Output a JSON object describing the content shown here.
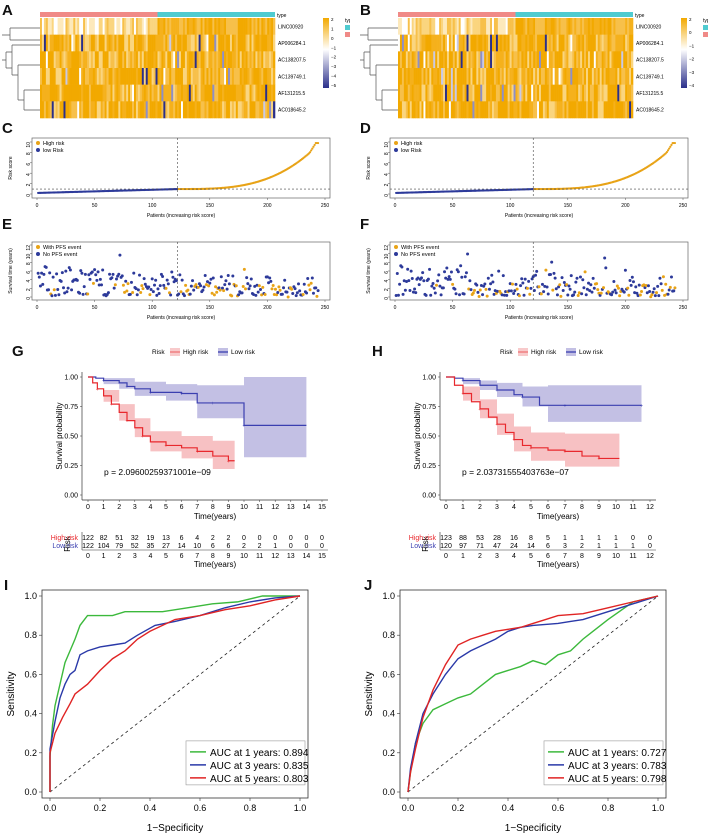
{
  "panels": [
    {
      "key": "A",
      "kind": "heatmap"
    },
    {
      "key": "B",
      "kind": "heatmap"
    },
    {
      "key": "C",
      "kind": "riskscore"
    },
    {
      "key": "D",
      "kind": "riskscore"
    },
    {
      "key": "E",
      "kind": "survival_scatter"
    },
    {
      "key": "F",
      "kind": "survival_scatter"
    },
    {
      "key": "G",
      "kind": "km"
    },
    {
      "key": "H",
      "kind": "km"
    },
    {
      "key": "I",
      "kind": "roc"
    },
    {
      "key": "J",
      "kind": "roc"
    }
  ],
  "colors": {
    "high": "#e8a317",
    "low": "#2d3a9a",
    "hmap_mid": "#ffffff",
    "hmap_hi": "#f2a900",
    "hmap_lo": "#2a2f8a",
    "km_high": "#e8282d",
    "km_low": "#3b3fb0",
    "km_high_fill": "#f4a7a9",
    "km_low_fill": "#a9a5d9",
    "roc1": "#3cb93c",
    "roc3": "#2a39a8",
    "roc5": "#e02424",
    "type_high": "#4fcbd0",
    "type_low": "#f08a87"
  },
  "heatmap": {
    "genes": [
      "LINC00920",
      "AP006284.1",
      "AC138207.5",
      "AC139749.1",
      "AF131215.5",
      "AC018645.2"
    ],
    "legend_title": "type",
    "type_items": [
      "high",
      "low"
    ],
    "scale_title": "type",
    "A": {
      "scale": [
        "2",
        "1",
        "0",
        "−1",
        "−2",
        "−3",
        "−4",
        "−5"
      ],
      "low_fraction": 0.5
    },
    "B": {
      "scale": [
        "2",
        "0",
        "−1",
        "−2",
        "−3",
        "−4"
      ],
      "low_fraction": 0.5
    }
  },
  "risk": {
    "legend": [
      "High risk",
      "low Risk"
    ],
    "ylabel": "Risk score",
    "xlabel": "Patients (increasing risk score)",
    "C": {
      "n": 244,
      "cut": 122,
      "yticks": [
        "0",
        "2",
        "4",
        "6",
        "8",
        "10"
      ],
      "xticks": [
        "0",
        "50",
        "100",
        "150",
        "200",
        "250"
      ],
      "cut_score": 0.95
    },
    "D": {
      "n": 243,
      "cut": 120,
      "yticks": [
        "0",
        "2",
        "4",
        "6",
        "8",
        "10"
      ],
      "xticks": [
        "0",
        "50",
        "100",
        "150",
        "200",
        "250"
      ],
      "cut_score": 0.95
    }
  },
  "surv": {
    "legend": [
      "With PFS event",
      "No PFS event"
    ],
    "ylabel": "Survival time (years)",
    "xlabel": "Patients (increasing risk score)",
    "E": {
      "n": 244,
      "cut": 122,
      "yticks": [
        "0",
        "2",
        "4",
        "6",
        "8",
        "10",
        "12"
      ],
      "xticks": [
        "0",
        "50",
        "100",
        "150",
        "200",
        "250"
      ]
    },
    "F": {
      "n": 243,
      "cut": 120,
      "yticks": [
        "0",
        "2",
        "4",
        "6",
        "8",
        "10",
        "12"
      ],
      "xticks": [
        "0",
        "50",
        "100",
        "150",
        "200",
        "250"
      ]
    }
  },
  "km": {
    "legend_title": "Risk",
    "legend": [
      "High risk",
      "Low risk"
    ],
    "ylabel": "Survival probability",
    "xlabel": "Time(years)",
    "yticks": [
      "0.00",
      "0.25",
      "0.50",
      "0.75",
      "1.00"
    ],
    "table_title": "Risk",
    "table_rows": [
      "High risk",
      "Low risk"
    ],
    "G": {
      "pval": "p = 2.09600259371001e−09",
      "xticks": [
        "0",
        "1",
        "2",
        "3",
        "4",
        "5",
        "6",
        "7",
        "8",
        "9",
        "10",
        "11",
        "12",
        "13",
        "14",
        "15"
      ],
      "xmax": 15,
      "high_table": [
        "122",
        "82",
        "51",
        "32",
        "19",
        "13",
        "6",
        "4",
        "2",
        "2",
        "0",
        "0",
        "0",
        "0",
        "0",
        "0"
      ],
      "low_table": [
        "122",
        "104",
        "79",
        "52",
        "35",
        "27",
        "14",
        "10",
        "6",
        "6",
        "2",
        "2",
        "1",
        "0",
        "0",
        "0"
      ],
      "high_curve": [
        [
          0,
          1.0
        ],
        [
          0.3,
          0.95
        ],
        [
          0.6,
          0.9
        ],
        [
          1,
          0.84
        ],
        [
          1.5,
          0.77
        ],
        [
          2,
          0.7
        ],
        [
          2.5,
          0.63
        ],
        [
          3,
          0.57
        ],
        [
          3.5,
          0.5
        ],
        [
          4,
          0.45
        ],
        [
          5,
          0.42
        ],
        [
          6,
          0.4
        ],
        [
          7,
          0.37
        ],
        [
          8,
          0.33
        ],
        [
          9,
          0.29
        ],
        [
          9.4,
          0.29
        ]
      ],
      "low_curve": [
        [
          0,
          1.0
        ],
        [
          0.5,
          0.99
        ],
        [
          1,
          0.97
        ],
        [
          2,
          0.95
        ],
        [
          2.5,
          0.92
        ],
        [
          3,
          0.9
        ],
        [
          4,
          0.87
        ],
        [
          5,
          0.87
        ],
        [
          6,
          0.86
        ],
        [
          7,
          0.78
        ],
        [
          8,
          0.78
        ],
        [
          9,
          0.78
        ],
        [
          10,
          0.59
        ],
        [
          14,
          0.59
        ]
      ],
      "high_band": [
        [
          0,
          1.0,
          1.0
        ],
        [
          1,
          0.79,
          0.89
        ],
        [
          2,
          0.63,
          0.77
        ],
        [
          3,
          0.49,
          0.65
        ],
        [
          4,
          0.37,
          0.54
        ],
        [
          6,
          0.31,
          0.5
        ],
        [
          8,
          0.22,
          0.46
        ],
        [
          9.4,
          0.16,
          0.46
        ]
      ],
      "low_band": [
        [
          0,
          1.0,
          1.0
        ],
        [
          1,
          0.94,
          0.99
        ],
        [
          2,
          0.9,
          0.99
        ],
        [
          3,
          0.84,
          0.96
        ],
        [
          5,
          0.8,
          0.94
        ],
        [
          7,
          0.65,
          0.93
        ],
        [
          10,
          0.32,
          1.0
        ],
        [
          14,
          0.32,
          1.0
        ]
      ]
    },
    "H": {
      "pval": "p = 2.03731555403763e−07",
      "xticks": [
        "0",
        "1",
        "2",
        "3",
        "4",
        "5",
        "6",
        "7",
        "8",
        "9",
        "10",
        "11",
        "12"
      ],
      "xmax": 12,
      "high_table": [
        "123",
        "88",
        "53",
        "28",
        "16",
        "8",
        "5",
        "1",
        "1",
        "1",
        "1",
        "0",
        "0"
      ],
      "low_table": [
        "120",
        "97",
        "71",
        "47",
        "24",
        "14",
        "6",
        "3",
        "2",
        "1",
        "1",
        "1",
        "0"
      ],
      "high_curve": [
        [
          0,
          1.0
        ],
        [
          0.5,
          0.93
        ],
        [
          1,
          0.86
        ],
        [
          1.5,
          0.79
        ],
        [
          2,
          0.73
        ],
        [
          2.5,
          0.66
        ],
        [
          3,
          0.6
        ],
        [
          3.5,
          0.53
        ],
        [
          4,
          0.47
        ],
        [
          4.5,
          0.42
        ],
        [
          5,
          0.4
        ],
        [
          6,
          0.38
        ],
        [
          7,
          0.37
        ],
        [
          8,
          0.33
        ],
        [
          9,
          0.31
        ],
        [
          10.2,
          0.31
        ]
      ],
      "low_curve": [
        [
          0,
          1.0
        ],
        [
          0.5,
          0.99
        ],
        [
          1,
          0.97
        ],
        [
          2,
          0.93
        ],
        [
          3,
          0.89
        ],
        [
          4,
          0.85
        ],
        [
          4.5,
          0.83
        ],
        [
          5.5,
          0.76
        ],
        [
          7,
          0.76
        ],
        [
          9,
          0.76
        ],
        [
          11.5,
          0.76
        ]
      ],
      "high_band": [
        [
          0,
          1.0,
          1.0
        ],
        [
          1,
          0.8,
          0.92
        ],
        [
          2,
          0.65,
          0.81
        ],
        [
          3,
          0.51,
          0.69
        ],
        [
          4,
          0.37,
          0.58
        ],
        [
          5,
          0.29,
          0.53
        ],
        [
          7,
          0.24,
          0.52
        ],
        [
          10.2,
          0.1,
          0.55
        ]
      ],
      "low_band": [
        [
          0,
          1.0,
          1.0
        ],
        [
          1,
          0.94,
          0.99
        ],
        [
          2,
          0.89,
          0.97
        ],
        [
          3,
          0.83,
          0.95
        ],
        [
          4.5,
          0.75,
          0.92
        ],
        [
          6,
          0.62,
          0.93
        ],
        [
          11.5,
          0.62,
          0.93
        ]
      ]
    }
  },
  "roc": {
    "ylabel": "Sensitivity",
    "xlabel": "1−Specificity",
    "ticks": [
      "0.0",
      "0.2",
      "0.4",
      "0.6",
      "0.8",
      "1.0"
    ],
    "I": {
      "legend": [
        "AUC at 1 years: 0.894",
        "AUC at 3 years: 0.835",
        "AUC at 5 years: 0.803"
      ],
      "c1": [
        [
          0,
          0
        ],
        [
          0,
          0.18
        ],
        [
          0.01,
          0.34
        ],
        [
          0.02,
          0.44
        ],
        [
          0.04,
          0.55
        ],
        [
          0.06,
          0.66
        ],
        [
          0.08,
          0.72
        ],
        [
          0.1,
          0.78
        ],
        [
          0.12,
          0.85
        ],
        [
          0.15,
          0.9
        ],
        [
          0.2,
          0.9
        ],
        [
          0.25,
          0.9
        ],
        [
          0.3,
          0.92
        ],
        [
          0.38,
          0.92
        ],
        [
          0.45,
          0.92
        ],
        [
          0.55,
          0.94
        ],
        [
          0.65,
          0.96
        ],
        [
          0.75,
          0.97
        ],
        [
          0.85,
          1.0
        ],
        [
          1,
          1
        ]
      ],
      "c3": [
        [
          0,
          0
        ],
        [
          0,
          0.22
        ],
        [
          0.02,
          0.36
        ],
        [
          0.04,
          0.48
        ],
        [
          0.06,
          0.55
        ],
        [
          0.08,
          0.6
        ],
        [
          0.1,
          0.62
        ],
        [
          0.12,
          0.7
        ],
        [
          0.15,
          0.72
        ],
        [
          0.2,
          0.74
        ],
        [
          0.25,
          0.75
        ],
        [
          0.3,
          0.76
        ],
        [
          0.35,
          0.8
        ],
        [
          0.42,
          0.85
        ],
        [
          0.5,
          0.87
        ],
        [
          0.6,
          0.9
        ],
        [
          0.7,
          0.94
        ],
        [
          0.8,
          0.97
        ],
        [
          0.9,
          0.99
        ],
        [
          1,
          1
        ]
      ],
      "c5": [
        [
          0,
          0
        ],
        [
          0,
          0.2
        ],
        [
          0.02,
          0.3
        ],
        [
          0.05,
          0.38
        ],
        [
          0.08,
          0.45
        ],
        [
          0.1,
          0.5
        ],
        [
          0.15,
          0.55
        ],
        [
          0.2,
          0.62
        ],
        [
          0.25,
          0.68
        ],
        [
          0.3,
          0.72
        ],
        [
          0.35,
          0.78
        ],
        [
          0.4,
          0.82
        ],
        [
          0.45,
          0.85
        ],
        [
          0.5,
          0.88
        ],
        [
          0.6,
          0.9
        ],
        [
          0.7,
          0.93
        ],
        [
          0.8,
          0.95
        ],
        [
          0.9,
          0.98
        ],
        [
          1,
          1
        ]
      ]
    },
    "J": {
      "legend": [
        "AUC at 1 years: 0.727",
        "AUC at 3 years: 0.783",
        "AUC at 5 years: 0.798"
      ],
      "c1": [
        [
          0,
          0
        ],
        [
          0.01,
          0.1
        ],
        [
          0.03,
          0.25
        ],
        [
          0.06,
          0.35
        ],
        [
          0.1,
          0.42
        ],
        [
          0.15,
          0.45
        ],
        [
          0.2,
          0.48
        ],
        [
          0.25,
          0.5
        ],
        [
          0.3,
          0.55
        ],
        [
          0.35,
          0.6
        ],
        [
          0.4,
          0.62
        ],
        [
          0.45,
          0.64
        ],
        [
          0.5,
          0.67
        ],
        [
          0.55,
          0.65
        ],
        [
          0.6,
          0.7
        ],
        [
          0.65,
          0.72
        ],
        [
          0.7,
          0.78
        ],
        [
          0.8,
          0.88
        ],
        [
          0.9,
          0.97
        ],
        [
          1,
          1
        ]
      ],
      "c3": [
        [
          0,
          0
        ],
        [
          0.01,
          0.12
        ],
        [
          0.03,
          0.25
        ],
        [
          0.06,
          0.4
        ],
        [
          0.1,
          0.5
        ],
        [
          0.15,
          0.6
        ],
        [
          0.2,
          0.68
        ],
        [
          0.25,
          0.72
        ],
        [
          0.3,
          0.75
        ],
        [
          0.35,
          0.78
        ],
        [
          0.4,
          0.82
        ],
        [
          0.45,
          0.84
        ],
        [
          0.5,
          0.85
        ],
        [
          0.6,
          0.86
        ],
        [
          0.65,
          0.87
        ],
        [
          0.7,
          0.88
        ],
        [
          0.8,
          0.92
        ],
        [
          0.9,
          0.96
        ],
        [
          1,
          1
        ]
      ],
      "c5": [
        [
          0,
          0
        ],
        [
          0.01,
          0.1
        ],
        [
          0.03,
          0.22
        ],
        [
          0.06,
          0.38
        ],
        [
          0.1,
          0.52
        ],
        [
          0.15,
          0.65
        ],
        [
          0.2,
          0.75
        ],
        [
          0.25,
          0.78
        ],
        [
          0.3,
          0.8
        ],
        [
          0.35,
          0.82
        ],
        [
          0.4,
          0.83
        ],
        [
          0.45,
          0.84
        ],
        [
          0.5,
          0.86
        ],
        [
          0.55,
          0.88
        ],
        [
          0.6,
          0.9
        ],
        [
          0.7,
          0.91
        ],
        [
          0.8,
          0.94
        ],
        [
          0.9,
          0.97
        ],
        [
          1,
          1
        ]
      ]
    }
  }
}
